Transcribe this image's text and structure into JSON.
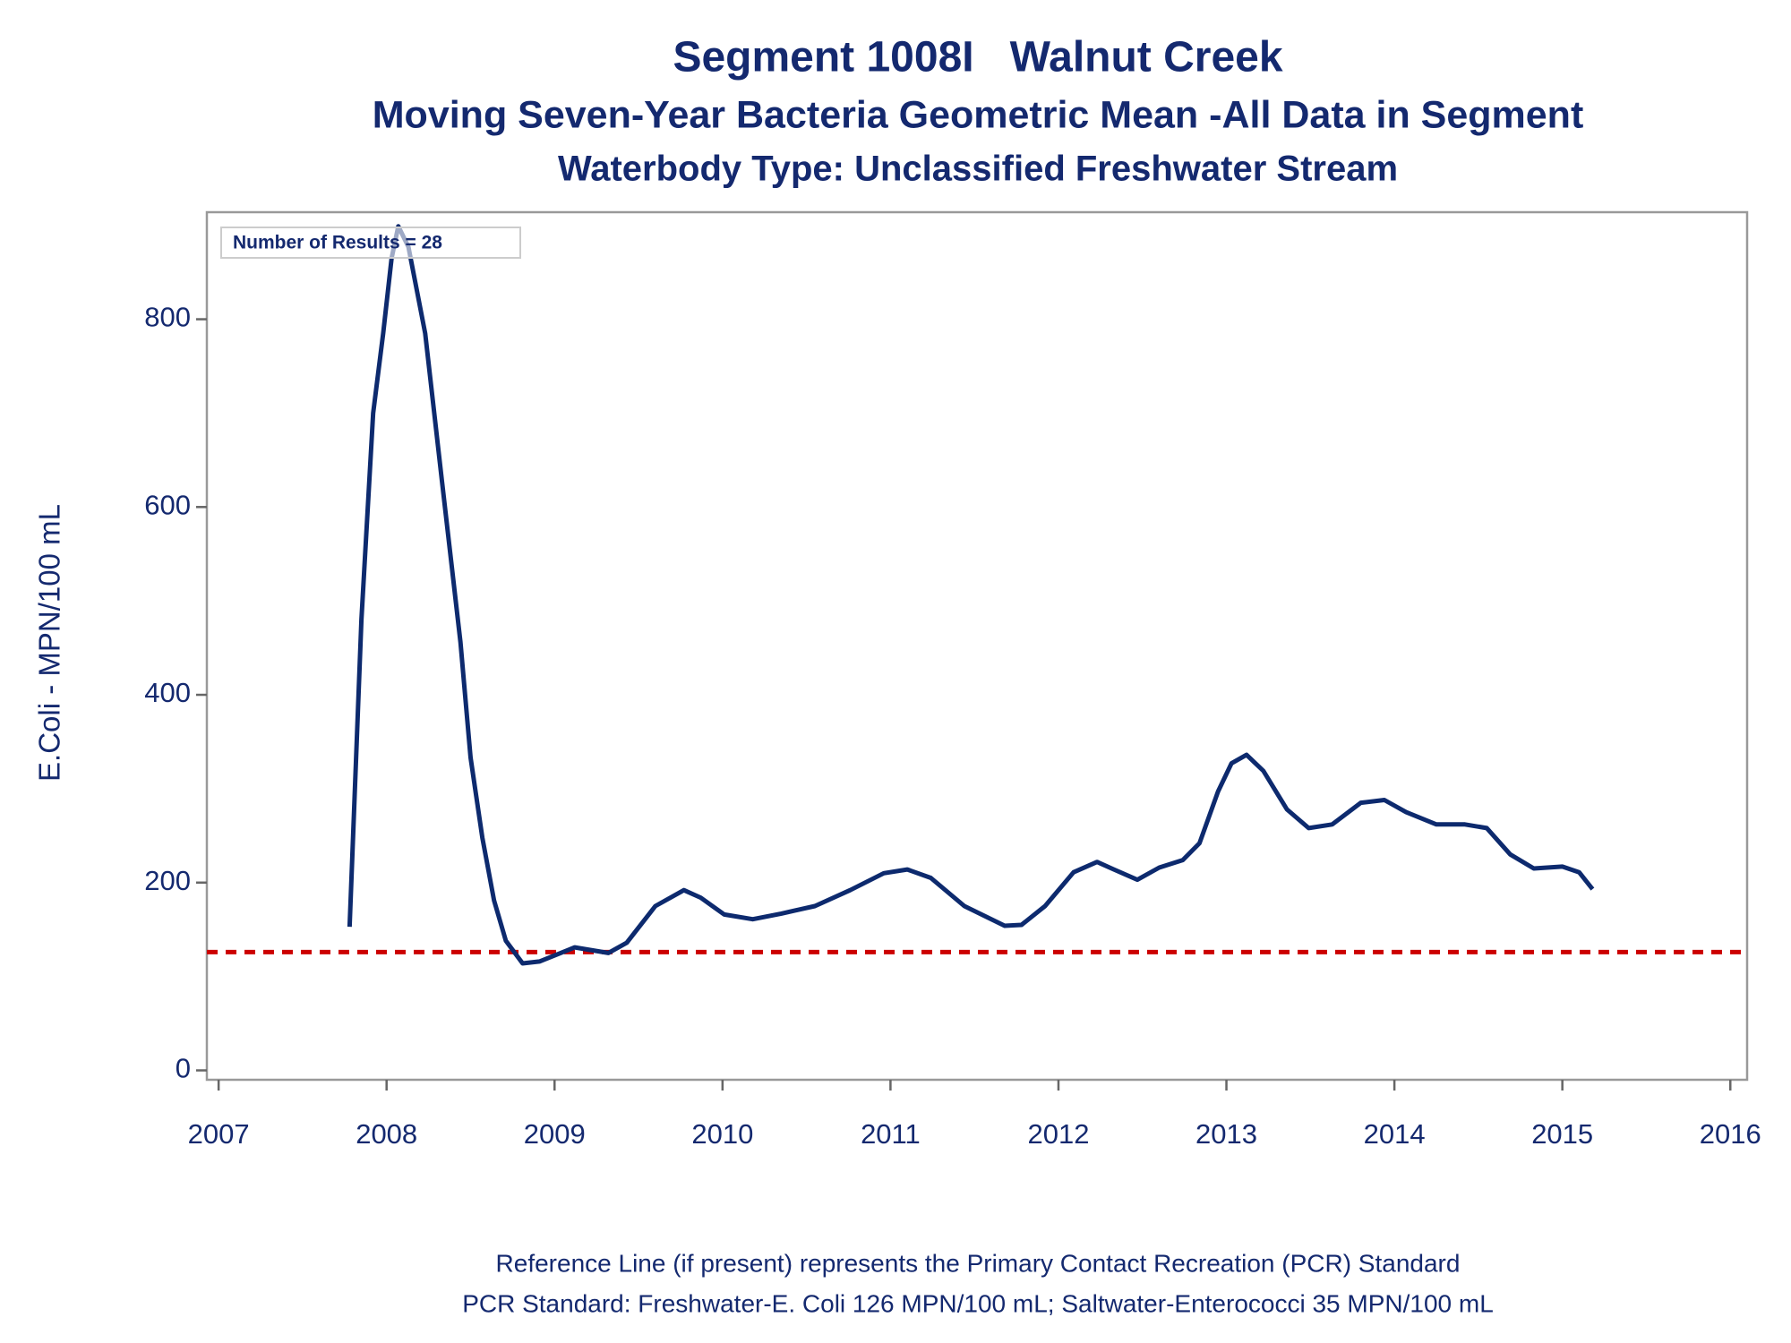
{
  "chart_data": {
    "type": "line",
    "title": "Segment 1008I   Walnut Creek",
    "subtitle": "Moving Seven-Year Bacteria Geometric Mean -All Data in Segment",
    "subtitle2": "Waterbody Type: Unclassified Freshwater Stream",
    "y_label": "E.Coli - MPN/100 mL",
    "annotation": "Number of Results = 28",
    "footnotes": [
      "Reference Line (if present) represents the Primary Contact Recreation (PCR) Standard",
      "PCR Standard: Freshwater-E. Coli 126 MPN/100 mL; Saltwater-Enterococci 35 MPN/100 mL"
    ],
    "x": [
      2007.78,
      2007.85,
      2007.92,
      2007.98,
      2008.03,
      2008.07,
      2008.13,
      2008.23,
      2008.33,
      2008.44,
      2008.5,
      2008.57,
      2008.64,
      2008.71,
      2008.81,
      2008.91,
      2009.12,
      2009.32,
      2009.43,
      2009.6,
      2009.77,
      2009.87,
      2010.01,
      2010.18,
      2010.35,
      2010.55,
      2010.76,
      2010.96,
      2011.1,
      2011.24,
      2011.44,
      2011.68,
      2011.78,
      2011.92,
      2012.09,
      2012.23,
      2012.33,
      2012.47,
      2012.6,
      2012.74,
      2012.84,
      2012.95,
      2013.03,
      2013.12,
      2013.22,
      2013.36,
      2013.49,
      2013.63,
      2013.8,
      2013.94,
      2014.07,
      2014.25,
      2014.42,
      2014.55,
      2014.69,
      2014.83,
      2015.0,
      2015.1,
      2015.18
    ],
    "series": [
      {
        "name": "Geometric Mean",
        "color": "#0d2a6e",
        "values": [
          153,
          480,
          700,
          785,
          865,
          899,
          877,
          785,
          627,
          456,
          333,
          248,
          181,
          138,
          114,
          116,
          131,
          125,
          136,
          175,
          192,
          184,
          166,
          161,
          167,
          175,
          192,
          210,
          214,
          205,
          175,
          154,
          155,
          175,
          211,
          222,
          214,
          203,
          216,
          224,
          242,
          297,
          327,
          336,
          319,
          278,
          258,
          262,
          285,
          288,
          275,
          262,
          262,
          258,
          230,
          215,
          217,
          211,
          193
        ]
      }
    ],
    "reference_line": {
      "value": 126,
      "color": "#cc0000"
    },
    "xlim": [
      2006.93,
      2016.1
    ],
    "xticks": [
      2007,
      2008,
      2009,
      2010,
      2011,
      2012,
      2013,
      2014,
      2015,
      2016
    ],
    "ylim": [
      -10,
      914
    ],
    "yticks": [
      0,
      200,
      400,
      600,
      800
    ]
  }
}
